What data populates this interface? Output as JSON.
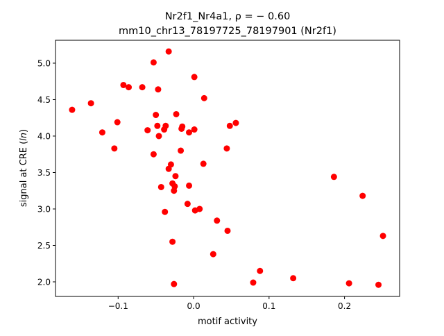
{
  "chart_data": {
    "type": "scatter",
    "title_line1": "Nr2f1_Nr4a1, ρ = − 0.60",
    "title_line2": "mm10_chr13_78197725_78197901 (Nr2f1)",
    "xlabel": "motif activity",
    "ylabel_prefix": "signal at CRE (",
    "ylabel_italic": "ln",
    "ylabel_suffix": ")",
    "xlim": [
      -0.183,
      0.273
    ],
    "ylim": [
      1.8,
      5.314
    ],
    "xticks": [
      -0.1,
      0.0,
      0.1,
      0.2
    ],
    "xtick_labels": [
      "−0.1",
      "0.0",
      "0.1",
      "0.2"
    ],
    "yticks": [
      2.0,
      2.5,
      3.0,
      3.5,
      4.0,
      4.5,
      5.0
    ],
    "ytick_labels": [
      "2.0",
      "2.5",
      "3.0",
      "3.5",
      "4.0",
      "4.5",
      "5.0"
    ],
    "grid": false,
    "marker_color": "#ff0000",
    "points": [
      [
        -0.033,
        5.16
      ],
      [
        -0.053,
        5.01
      ],
      [
        0.001,
        4.81
      ],
      [
        -0.093,
        4.7
      ],
      [
        -0.086,
        4.67
      ],
      [
        -0.068,
        4.67
      ],
      [
        -0.047,
        4.64
      ],
      [
        0.014,
        4.52
      ],
      [
        -0.136,
        4.45
      ],
      [
        -0.161,
        4.36
      ],
      [
        -0.023,
        4.3
      ],
      [
        -0.05,
        4.29
      ],
      [
        -0.101,
        4.19
      ],
      [
        0.056,
        4.18
      ],
      [
        0.048,
        4.14
      ],
      [
        -0.048,
        4.14
      ],
      [
        -0.037,
        4.14
      ],
      [
        -0.015,
        4.13
      ],
      [
        -0.016,
        4.1
      ],
      [
        -0.039,
        4.09
      ],
      [
        -0.061,
        4.08
      ],
      [
        0.001,
        4.09
      ],
      [
        -0.006,
        4.05
      ],
      [
        -0.121,
        4.05
      ],
      [
        -0.046,
        4.0
      ],
      [
        -0.105,
        3.83
      ],
      [
        0.044,
        3.83
      ],
      [
        -0.017,
        3.8
      ],
      [
        -0.053,
        3.75
      ],
      [
        0.013,
        3.62
      ],
      [
        -0.03,
        3.61
      ],
      [
        -0.033,
        3.55
      ],
      [
        -0.024,
        3.45
      ],
      [
        0.186,
        3.44
      ],
      [
        -0.043,
        3.3
      ],
      [
        -0.006,
        3.32
      ],
      [
        -0.028,
        3.35
      ],
      [
        -0.025,
        3.31
      ],
      [
        -0.026,
        3.25
      ],
      [
        0.224,
        3.18
      ],
      [
        -0.008,
        3.07
      ],
      [
        0.008,
        3.0
      ],
      [
        0.002,
        2.98
      ],
      [
        -0.038,
        2.96
      ],
      [
        0.031,
        2.84
      ],
      [
        0.045,
        2.7
      ],
      [
        0.251,
        2.63
      ],
      [
        -0.028,
        2.55
      ],
      [
        0.026,
        2.38
      ],
      [
        0.088,
        2.15
      ],
      [
        0.132,
        2.05
      ],
      [
        0.079,
        1.99
      ],
      [
        0.206,
        1.98
      ],
      [
        -0.026,
        1.97
      ],
      [
        0.245,
        1.96
      ]
    ]
  }
}
